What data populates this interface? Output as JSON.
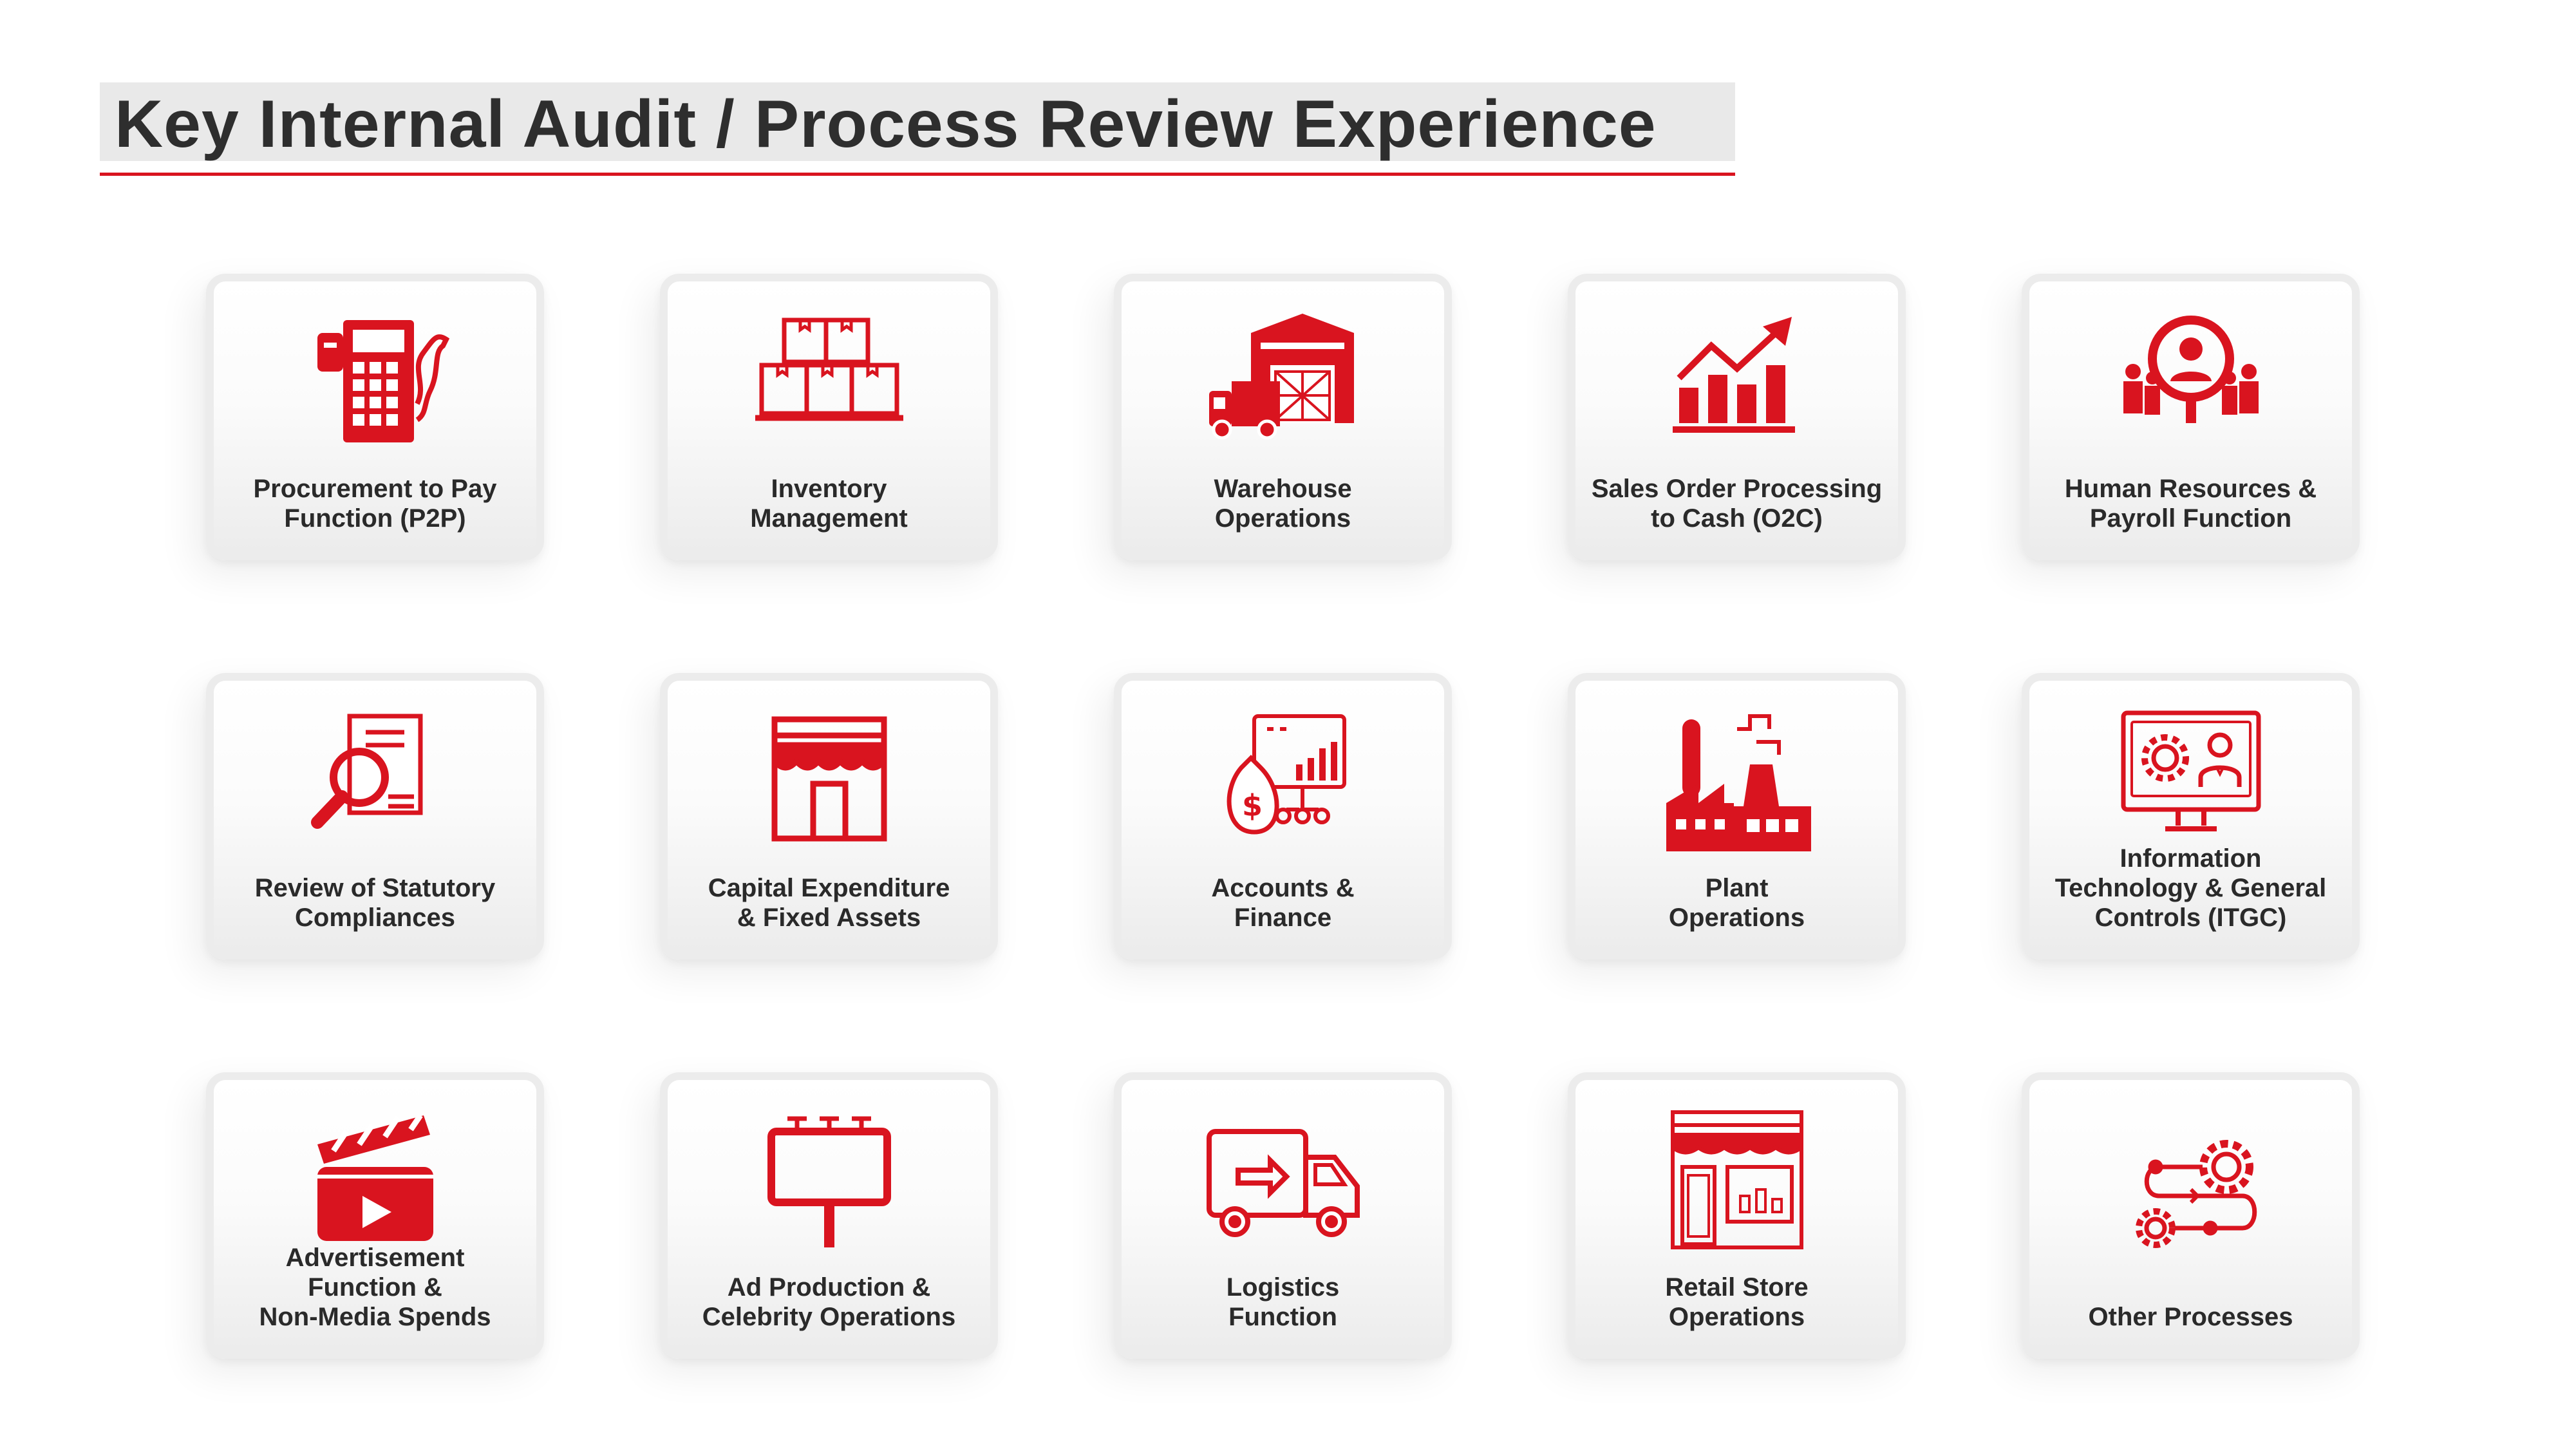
{
  "title": "Key Internal Audit / Process Review Experience",
  "accent_color": "#d9141f",
  "cards": [
    {
      "label": "Procurement to Pay\nFunction (P2P)",
      "icon": "calculator-receipt-icon"
    },
    {
      "label": "Inventory\nManagement",
      "icon": "stacked-boxes-icon"
    },
    {
      "label": "Warehouse\nOperations",
      "icon": "warehouse-truck-icon"
    },
    {
      "label": "Sales Order Processing\nto Cash (O2C)",
      "icon": "growth-chart-icon"
    },
    {
      "label": "Human Resources &\nPayroll Function",
      "icon": "people-search-icon"
    },
    {
      "label": "Review of Statutory\nCompliances",
      "icon": "document-magnifier-icon"
    },
    {
      "label": "Capital Expenditure\n& Fixed Assets",
      "icon": "storefront-icon"
    },
    {
      "label": "Accounts &\nFinance",
      "icon": "money-bag-chart-icon"
    },
    {
      "label": "Plant\nOperations",
      "icon": "factory-icon"
    },
    {
      "label": "Information\nTechnology & General\nControls (ITGC)",
      "icon": "monitor-gear-user-icon"
    },
    {
      "label": "Advertisement\nFunction &\nNon-Media Spends",
      "icon": "clapperboard-icon"
    },
    {
      "label": "Ad Production &\nCelebrity Operations",
      "icon": "billboard-icon"
    },
    {
      "label": "Logistics\nFunction",
      "icon": "delivery-truck-icon"
    },
    {
      "label": "Retail Store\nOperations",
      "icon": "retail-store-icon"
    },
    {
      "label": "Other Processes",
      "icon": "process-gears-icon"
    }
  ]
}
